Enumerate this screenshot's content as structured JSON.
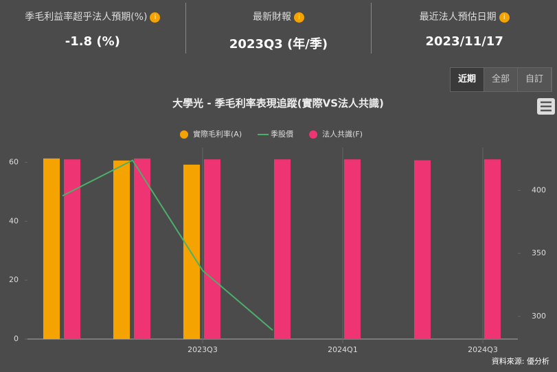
{
  "stats": [
    {
      "label": "季毛利益率超乎法人預期(%)",
      "value": "-1.8 (%)"
    },
    {
      "label": "最新財報",
      "value": "2023Q3 (年/季)"
    },
    {
      "label": "最近法人預估日期",
      "value": "2023/11/17"
    }
  ],
  "buttons": [
    "近期",
    "全部",
    "自訂"
  ],
  "source": "資料來源: 優分析",
  "chart_data": {
    "type": "bar",
    "title": "大學光 - 季毛利率表現追蹤(實際VS法人共識)",
    "categories": [
      null,
      null,
      "2023Q3",
      null,
      "2024Q1",
      null,
      "2024Q3"
    ],
    "series": [
      {
        "name": "實際毛利率(A)",
        "type": "bar",
        "color": "#f5a300",
        "values": [
          61.3,
          60.6,
          59.2,
          null,
          null,
          null,
          null
        ]
      },
      {
        "name": "季股價",
        "type": "line",
        "axis": "y2",
        "color": "#4caf6a",
        "values": [
          395.7,
          423.9,
          336.4,
          289,
          null,
          null,
          null
        ]
      },
      {
        "name": "法人共識(F)",
        "type": "bar",
        "color": "#ee3473",
        "values": [
          61,
          61.3,
          61,
          61,
          61,
          60.7,
          61
        ]
      }
    ],
    "ylim": [
      0,
      65
    ],
    "yticks": [
      0,
      20,
      40,
      60
    ],
    "y2lim": [
      282,
      434
    ],
    "y2ticks": [
      300,
      350,
      400
    ]
  }
}
